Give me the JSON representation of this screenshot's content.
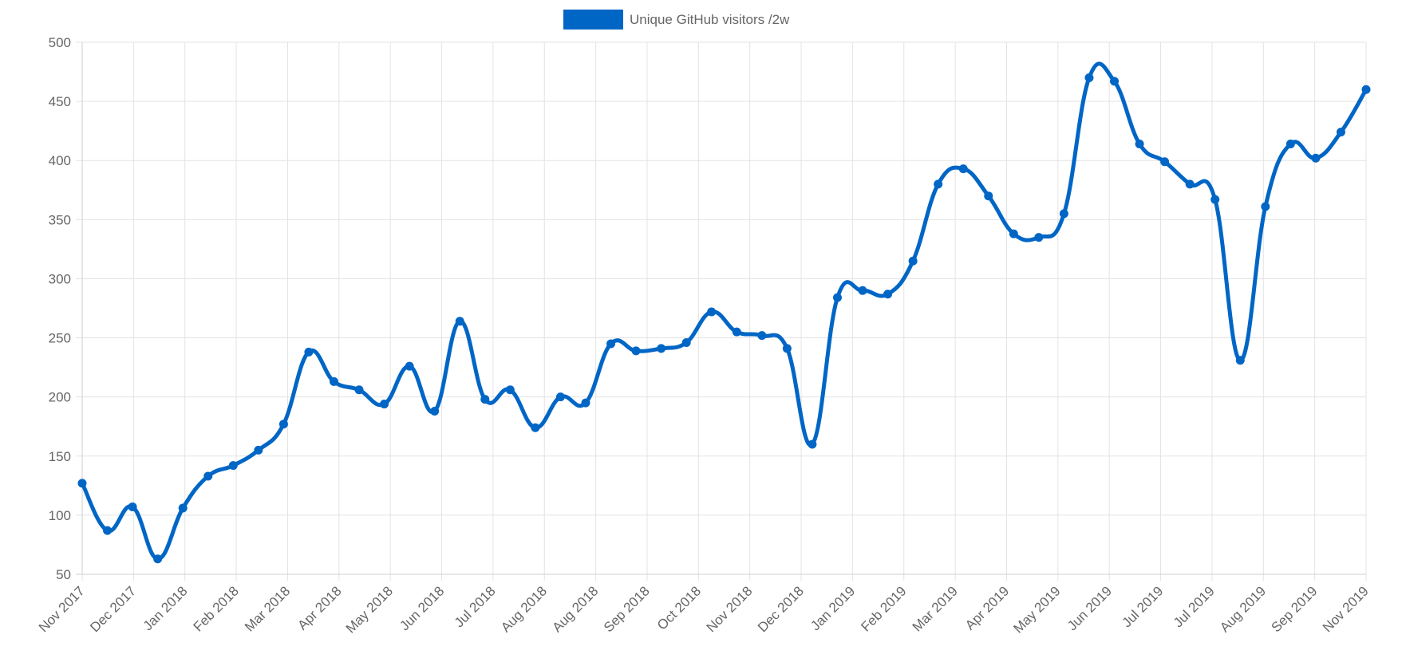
{
  "chart_data": {
    "type": "line",
    "legend": {
      "position": "top-center",
      "color": "#0066c6"
    },
    "series": [
      {
        "name": "Unique GitHub visitors /2w",
        "color": "#0066c6",
        "values": [
          127,
          87,
          107,
          63,
          106,
          133,
          142,
          155,
          177,
          238,
          213,
          206,
          194,
          226,
          188,
          264,
          198,
          206,
          174,
          200,
          195,
          245,
          239,
          241,
          246,
          272,
          255,
          252,
          241,
          160,
          284,
          290,
          287,
          315,
          380,
          393,
          370,
          338,
          335,
          355,
          470,
          467,
          414,
          399,
          380,
          367,
          231,
          361,
          414,
          402,
          424,
          460
        ]
      }
    ],
    "x_tick_labels": [
      "Nov 2017",
      "Dec 2017",
      "Jan 2018",
      "Feb 2018",
      "Mar 2018",
      "Apr 2018",
      "May 2018",
      "Jun 2018",
      "Jul 2018",
      "Aug 2018",
      "Aug 2018",
      "Sep 2018",
      "Oct 2018",
      "Nov 2018",
      "Dec 2018",
      "Jan 2019",
      "Feb 2019",
      "Mar 2019",
      "Apr 2019",
      "May 2019",
      "Jun 2019",
      "Jul 2019",
      "Jul 2019",
      "Aug 2019",
      "Sep 2019",
      "Nov 2019"
    ],
    "y_ticks": [
      50,
      100,
      150,
      200,
      250,
      300,
      350,
      400,
      450,
      500
    ],
    "ylim": [
      50,
      500
    ],
    "grid": true,
    "smooth": true
  }
}
